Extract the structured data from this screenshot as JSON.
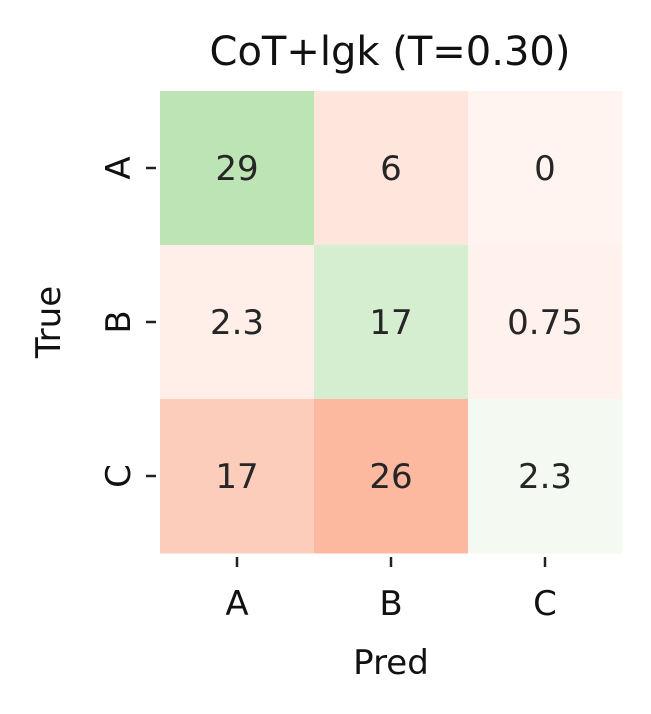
{
  "chart_data": {
    "type": "heatmap",
    "title": "CoT+lgk (T=0.30)",
    "xlabel": "Pred",
    "ylabel": "True",
    "x_categories": [
      "A",
      "B",
      "C"
    ],
    "y_categories": [
      "A",
      "B",
      "C"
    ],
    "values": [
      [
        29,
        6,
        0
      ],
      [
        2.3,
        17,
        0.75
      ],
      [
        17,
        26,
        2.3
      ]
    ],
    "value_labels": [
      [
        "29",
        "6",
        "0"
      ],
      [
        "2.3",
        "17",
        "0.75"
      ],
      [
        "17",
        "26",
        "2.3"
      ]
    ],
    "colors": {
      "correct_low": "#f4faf1",
      "correct_high": "#bce4b5",
      "error_low": "#fff4ef",
      "error_high": "#fcb99f"
    },
    "colorbar": false,
    "grid": false
  }
}
